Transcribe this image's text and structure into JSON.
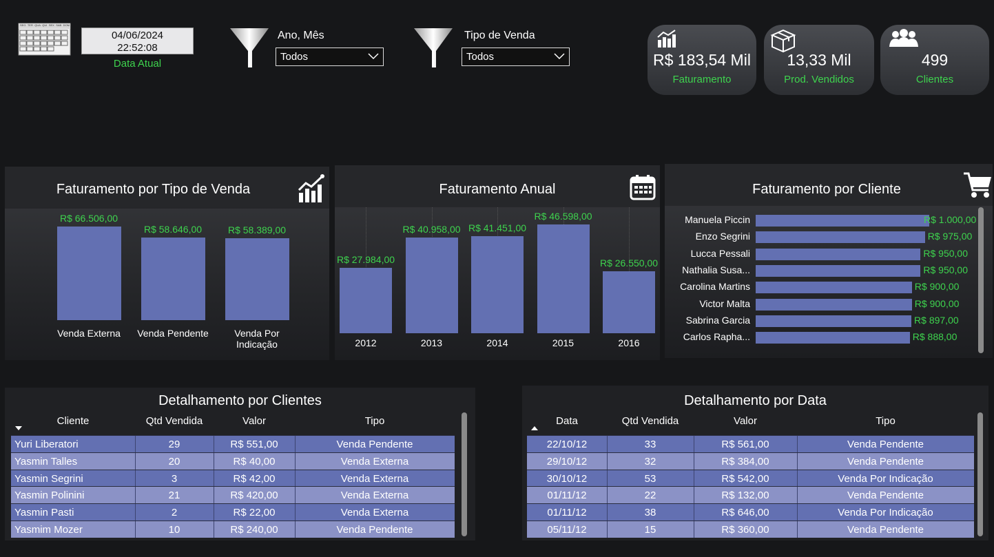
{
  "header": {
    "calendar_days": [
      "SEG",
      "TER",
      "QUA",
      "QUI",
      "SEX",
      "SAB",
      "DOM"
    ],
    "date": "04/06/2024",
    "time": "22:52:08",
    "date_label": "Data Atual",
    "filters": [
      {
        "label": "Ano, Mês",
        "value": "Todos"
      },
      {
        "label": "Tipo de Venda",
        "value": "Todos"
      }
    ]
  },
  "kpis": [
    {
      "icon": "bar-chart-icon",
      "value": "R$ 183,54 Mil",
      "label": "Faturamento"
    },
    {
      "icon": "box-icon",
      "value": "13,33 Mil",
      "label": "Prod. Vendidos"
    },
    {
      "icon": "users-icon",
      "value": "499",
      "label": "Clientes"
    }
  ],
  "colors": {
    "bar": "#6370b2",
    "accent_green": "#3ed34e",
    "row_alt": "#8b92c6"
  },
  "chart_data": [
    {
      "type": "bar",
      "title": "Faturamento por Tipo de Venda",
      "categories": [
        "Venda Externa",
        "Venda Pendente",
        "Venda Por Indicação"
      ],
      "values": [
        66506,
        58646,
        58389
      ],
      "labels": [
        "R$ 66.506,00",
        "R$ 58.646,00",
        "R$ 58.389,00"
      ]
    },
    {
      "type": "bar",
      "title": "Faturamento Anual",
      "categories": [
        "2012",
        "2013",
        "2014",
        "2015",
        "2016"
      ],
      "values": [
        27984,
        40958,
        41451,
        46598,
        26550
      ],
      "labels": [
        "R$ 27.984,00",
        "R$ 40.958,00",
        "R$ 41.451,00",
        "R$ 46.598,00",
        "R$ 26.550,00"
      ]
    },
    {
      "type": "bar",
      "orientation": "horizontal",
      "title": "Faturamento por Cliente",
      "categories": [
        "Manuela Piccin",
        "Enzo Segrini",
        "Lucca Pessali",
        "Nathalia Susa...",
        "Carolina Martins",
        "Victor Malta",
        "Sabrina Garcia",
        "Carlos Rapha..."
      ],
      "values": [
        1000,
        975,
        950,
        950,
        900,
        900,
        897,
        888
      ],
      "labels": [
        "R$ 1.000,00",
        "R$ 975,00",
        "R$ 950,00",
        "R$ 950,00",
        "R$ 900,00",
        "R$ 900,00",
        "R$ 897,00",
        "R$ 888,00"
      ]
    }
  ],
  "tables": {
    "clientes": {
      "title": "Detalhamento por Clientes",
      "columns": [
        "Cliente",
        "Qtd Vendida",
        "Valor",
        "Tipo"
      ],
      "rows": [
        [
          "Yuri Liberatori",
          "29",
          "R$ 551,00",
          "Venda Pendente"
        ],
        [
          "Yasmin Talles",
          "20",
          "R$ 40,00",
          "Venda Externa"
        ],
        [
          "Yasmin Segrini",
          "3",
          "R$ 42,00",
          "Venda Externa"
        ],
        [
          "Yasmin Polinini",
          "21",
          "R$ 420,00",
          "Venda Externa"
        ],
        [
          "Yasmin Pasti",
          "2",
          "R$ 22,00",
          "Venda Externa"
        ],
        [
          "Yasmim Mozer",
          "10",
          "R$ 240,00",
          "Venda Pendente"
        ]
      ]
    },
    "data": {
      "title": "Detalhamento por Data",
      "columns": [
        "Data",
        "Qtd Vendida",
        "Valor",
        "Tipo"
      ],
      "rows": [
        [
          "22/10/12",
          "33",
          "R$ 561,00",
          "Venda Pendente"
        ],
        [
          "29/10/12",
          "32",
          "R$ 384,00",
          "Venda Pendente"
        ],
        [
          "30/10/12",
          "53",
          "R$ 542,00",
          "Venda Por Indicação"
        ],
        [
          "01/11/12",
          "22",
          "R$ 132,00",
          "Venda Pendente"
        ],
        [
          "01/11/12",
          "38",
          "R$ 646,00",
          "Venda Por Indicação"
        ],
        [
          "05/11/12",
          "15",
          "R$ 360,00",
          "Venda Pendente"
        ]
      ]
    }
  }
}
